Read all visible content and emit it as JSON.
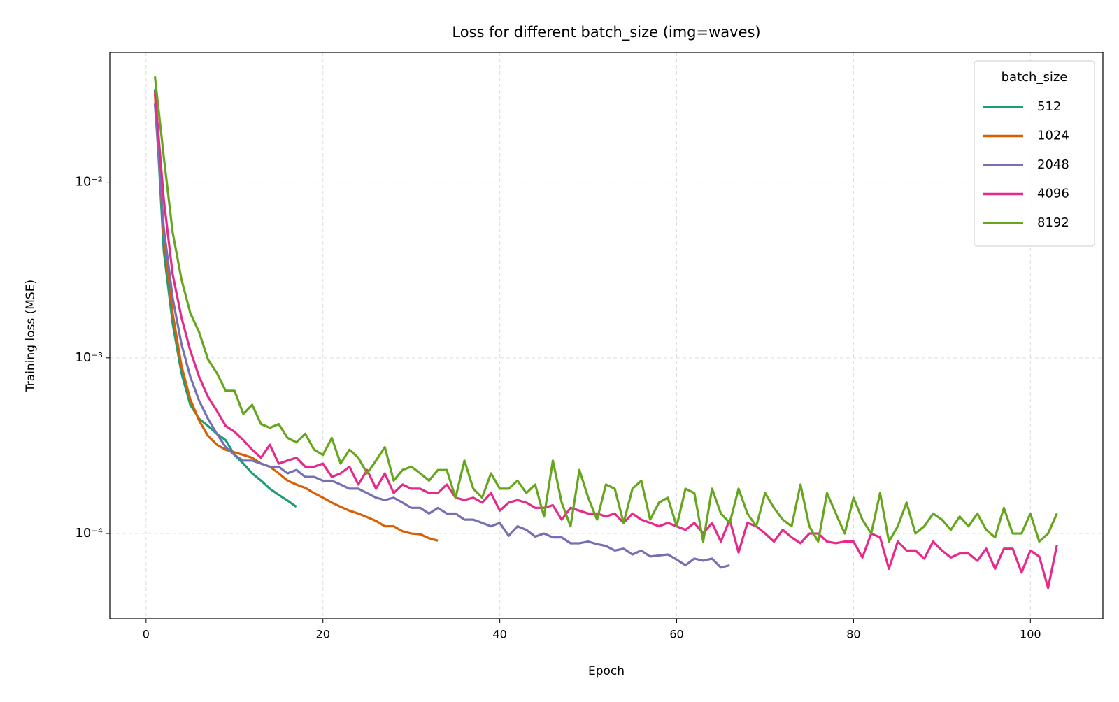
{
  "chart_data": {
    "type": "line",
    "title": "Loss for different batch_size (img=waves)",
    "x_label": "Epoch",
    "y_label": "Training loss (MSE)",
    "y_scale": "log",
    "grid": true,
    "legend_title": "batch_size",
    "legend_position": "upper right",
    "xlim": [
      -4.1,
      108.2
    ],
    "ylim": [
      3.27e-05,
      0.0548
    ],
    "xticks": [
      0,
      20,
      40,
      60,
      80,
      100
    ],
    "yticks": [
      {
        "value": 0.01,
        "label": "10⁻²"
      },
      {
        "value": 0.001,
        "label": "10⁻³"
      },
      {
        "value": 0.0001,
        "label": "10⁻⁴"
      }
    ],
    "x": [
      1,
      2,
      3,
      4,
      5,
      6,
      7,
      8,
      9,
      10,
      11,
      12,
      13,
      14,
      15,
      16,
      17,
      18,
      19,
      20,
      21,
      22,
      23,
      24,
      25,
      26,
      27,
      28,
      29,
      30,
      31,
      32,
      33,
      34,
      35,
      36,
      37,
      38,
      39,
      40,
      41,
      42,
      43,
      44,
      45,
      46,
      47,
      48,
      49,
      50,
      51,
      52,
      53,
      54,
      55,
      56,
      57,
      58,
      59,
      60,
      61,
      62,
      63,
      64,
      65,
      66,
      67,
      68,
      69,
      70,
      71,
      72,
      73,
      74,
      75,
      76,
      77,
      78,
      79,
      80,
      81,
      82,
      83,
      84,
      85,
      86,
      87,
      88,
      89,
      90,
      91,
      92,
      93,
      94,
      95,
      96,
      97,
      98,
      99,
      100,
      101,
      102,
      103
    ],
    "series": [
      {
        "name": "512",
        "color": "#1b9e77",
        "values": [
          0.0336,
          0.00406,
          0.00158,
          0.00082,
          0.00054,
          0.00045,
          0.00041,
          0.00037,
          0.00034,
          0.00028,
          0.00025,
          0.00022,
          0.0002,
          0.00018,
          0.000166,
          0.000154,
          0.000142,
          null,
          null,
          null,
          null,
          null,
          null,
          null,
          null,
          null,
          null,
          null,
          null,
          null,
          null,
          null,
          null,
          null,
          null,
          null,
          null,
          null,
          null,
          null,
          null,
          null,
          null,
          null,
          null,
          null,
          null,
          null,
          null,
          null,
          null,
          null,
          null,
          null,
          null,
          null,
          null,
          null,
          null,
          null,
          null,
          null,
          null,
          null,
          null,
          null,
          null,
          null,
          null,
          null,
          null,
          null,
          null,
          null,
          null,
          null,
          null,
          null,
          null,
          null,
          null,
          null,
          null,
          null,
          null,
          null,
          null,
          null,
          null,
          null,
          null,
          null,
          null,
          null,
          null,
          null,
          null,
          null,
          null,
          null,
          null,
          null,
          null
        ]
      },
      {
        "name": "1024",
        "color": "#d95f02",
        "values": [
          0.032,
          0.005,
          0.0018,
          0.0009,
          0.00058,
          0.00044,
          0.00036,
          0.00032,
          0.0003,
          0.00029,
          0.00028,
          0.00027,
          0.00025,
          0.00024,
          0.00022,
          0.0002,
          0.00019,
          0.000182,
          0.00017,
          0.00016,
          0.00015,
          0.000142,
          0.000135,
          0.00013,
          0.000124,
          0.000118,
          0.00011,
          0.00011,
          0.000103,
          0.0001,
          9.9e-05,
          9.4e-05,
          9.1e-05,
          null,
          null,
          null,
          null,
          null,
          null,
          null,
          null,
          null,
          null,
          null,
          null,
          null,
          null,
          null,
          null,
          null,
          null,
          null,
          null,
          null,
          null,
          null,
          null,
          null,
          null,
          null,
          null,
          null,
          null,
          null,
          null,
          null,
          null,
          null,
          null,
          null,
          null,
          null,
          null,
          null,
          null,
          null,
          null,
          null,
          null,
          null,
          null,
          null,
          null,
          null,
          null,
          null,
          null,
          null,
          null,
          null,
          null,
          null,
          null,
          null,
          null,
          null,
          null,
          null,
          null,
          null,
          null,
          null,
          null
        ]
      },
      {
        "name": "2048",
        "color": "#7570b3",
        "values": [
          0.028,
          0.0055,
          0.0022,
          0.0012,
          0.00078,
          0.00057,
          0.00045,
          0.00037,
          0.00031,
          0.00028,
          0.00026,
          0.00026,
          0.00025,
          0.00024,
          0.00024,
          0.00022,
          0.00023,
          0.00021,
          0.00021,
          0.0002,
          0.0002,
          0.00019,
          0.00018,
          0.00018,
          0.00017,
          0.00016,
          0.000155,
          0.00016,
          0.00015,
          0.00014,
          0.00014,
          0.00013,
          0.00014,
          0.00013,
          0.00013,
          0.00012,
          0.00012,
          0.000115,
          0.00011,
          0.000115,
          9.7e-05,
          0.00011,
          0.000105,
          9.6e-05,
          0.0001,
          9.5e-05,
          9.5e-05,
          8.8e-05,
          8.8e-05,
          9e-05,
          8.7e-05,
          8.5e-05,
          8e-05,
          8.2e-05,
          7.6e-05,
          8e-05,
          7.4e-05,
          7.5e-05,
          7.6e-05,
          7.1e-05,
          6.6e-05,
          7.2e-05,
          7e-05,
          7.2e-05,
          6.4e-05,
          6.6e-05,
          null,
          null,
          null,
          null,
          null,
          null,
          null,
          null,
          null,
          null,
          null,
          null,
          null,
          null,
          null,
          null,
          null,
          null,
          null,
          null,
          null,
          null,
          null,
          null,
          null,
          null,
          null,
          null,
          null,
          null,
          null,
          null,
          null,
          null,
          null,
          null,
          null
        ]
      },
      {
        "name": "4096",
        "color": "#e7298a",
        "values": [
          0.033,
          0.008,
          0.003,
          0.0017,
          0.0011,
          0.00078,
          0.0006,
          0.0005,
          0.00041,
          0.00038,
          0.00034,
          0.0003,
          0.00027,
          0.00032,
          0.00025,
          0.00026,
          0.00027,
          0.00024,
          0.00024,
          0.00025,
          0.00021,
          0.00022,
          0.00024,
          0.00019,
          0.00023,
          0.00018,
          0.00022,
          0.00017,
          0.00019,
          0.00018,
          0.00018,
          0.00017,
          0.00017,
          0.00019,
          0.00016,
          0.000155,
          0.00016,
          0.00015,
          0.00017,
          0.000135,
          0.00015,
          0.000155,
          0.00015,
          0.00014,
          0.00014,
          0.000145,
          0.00012,
          0.00014,
          0.000135,
          0.00013,
          0.00013,
          0.000125,
          0.00013,
          0.000115,
          0.00013,
          0.00012,
          0.000115,
          0.00011,
          0.000115,
          0.00011,
          0.000105,
          0.000115,
          0.0001,
          0.000115,
          9e-05,
          0.00012,
          7.8e-05,
          0.000115,
          0.00011,
          0.0001,
          9e-05,
          0.000105,
          9.5e-05,
          8.8e-05,
          0.0001,
          0.0001,
          9e-05,
          8.8e-05,
          9e-05,
          9e-05,
          7.3e-05,
          0.0001,
          9.5e-05,
          6.3e-05,
          9e-05,
          8e-05,
          8e-05,
          7.2e-05,
          9e-05,
          8e-05,
          7.3e-05,
          7.7e-05,
          7.7e-05,
          7e-05,
          8.2e-05,
          6.3e-05,
          8.2e-05,
          8.2e-05,
          6e-05,
          8e-05,
          7.4e-05,
          4.9e-05,
          8.6e-05
        ]
      },
      {
        "name": "8192",
        "color": "#66a61e",
        "values": [
          0.04,
          0.014,
          0.0052,
          0.0028,
          0.0018,
          0.0014,
          0.00098,
          0.00082,
          0.00065,
          0.00065,
          0.00048,
          0.00054,
          0.00042,
          0.0004,
          0.00042,
          0.00035,
          0.00033,
          0.00037,
          0.0003,
          0.00028,
          0.00035,
          0.00025,
          0.0003,
          0.00027,
          0.00022,
          0.00026,
          0.00031,
          0.0002,
          0.00023,
          0.00024,
          0.00022,
          0.0002,
          0.00023,
          0.00023,
          0.00016,
          0.00026,
          0.00018,
          0.00016,
          0.00022,
          0.00018,
          0.00018,
          0.0002,
          0.00017,
          0.00019,
          0.000125,
          0.00026,
          0.00015,
          0.00011,
          0.00023,
          0.00016,
          0.00012,
          0.00019,
          0.00018,
          0.000115,
          0.00018,
          0.0002,
          0.00012,
          0.00015,
          0.00016,
          0.00011,
          0.00018,
          0.00017,
          9e-05,
          0.00018,
          0.00013,
          0.000115,
          0.00018,
          0.00013,
          0.00011,
          0.00017,
          0.00014,
          0.00012,
          0.00011,
          0.00019,
          0.00011,
          9e-05,
          0.00017,
          0.00013,
          0.0001,
          0.00016,
          0.00012,
          0.0001,
          0.00017,
          9e-05,
          0.00011,
          0.00015,
          0.0001,
          0.00011,
          0.00013,
          0.00012,
          0.000105,
          0.000125,
          0.00011,
          0.00013,
          0.000105,
          9.5e-05,
          0.00014,
          0.0001,
          0.0001,
          0.00013,
          9e-05,
          0.0001,
          0.00013
        ]
      }
    ]
  }
}
